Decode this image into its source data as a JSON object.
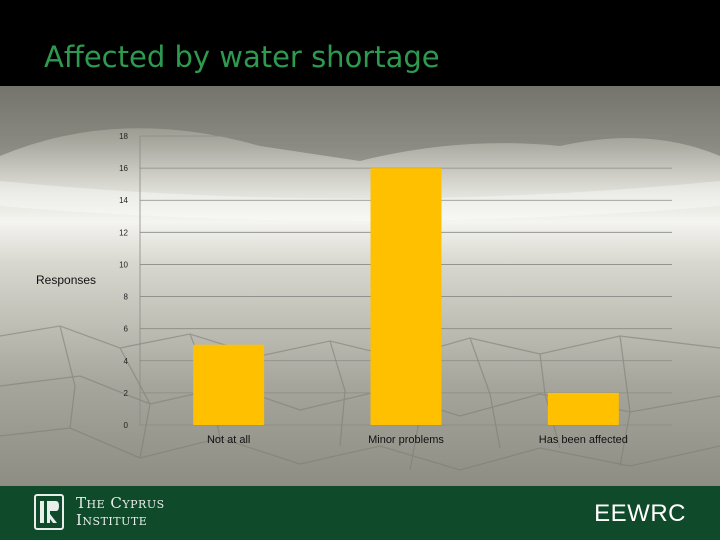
{
  "slide": {
    "title": "Affected by water shortage",
    "footer_left_line1": "The Cyprus",
    "footer_left_line2": "Institute",
    "footer_right": "EEWRC"
  },
  "colors": {
    "bar": "#ffc000",
    "title": "#2e9a50",
    "footer": "#0f4a2a"
  },
  "chart_data": {
    "type": "bar",
    "categories": [
      "Not at all",
      "Minor problems",
      "Has been affected"
    ],
    "values": [
      5,
      16,
      2
    ],
    "title": "",
    "xlabel": "",
    "ylabel": "Responses",
    "ylim": [
      0,
      18
    ],
    "yticks": [
      0,
      2,
      4,
      6,
      8,
      10,
      12,
      14,
      16,
      18
    ],
    "grid": true,
    "legend": "none"
  }
}
